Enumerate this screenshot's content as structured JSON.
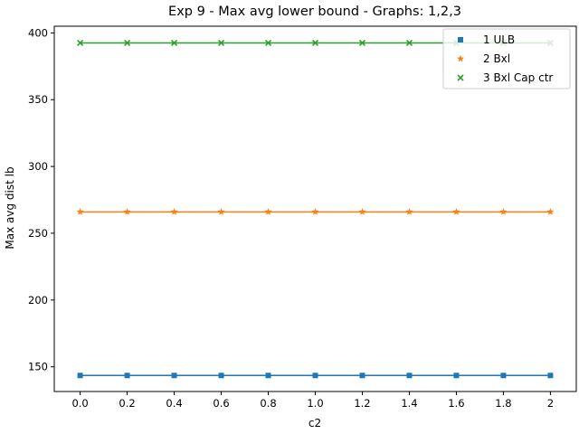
{
  "chart_data": {
    "type": "line",
    "title": "Exp 9 - Max avg lower bound - Graphs: 1,2,3",
    "xlabel": "c2",
    "ylabel": "Max avg dist lb",
    "x": [
      0.0,
      0.2,
      0.4,
      0.6,
      0.8,
      1.0,
      1.2,
      1.4,
      1.6,
      1.8,
      2.0
    ],
    "x_tick_labels": [
      "0.0",
      "0.2",
      "0.4",
      "0.6",
      "0.8",
      "1.0",
      "1.2",
      "1.4",
      "1.6",
      "1.8",
      "2"
    ],
    "y_ticks": [
      150,
      200,
      250,
      300,
      350,
      400
    ],
    "xlim": [
      -0.11,
      2.11
    ],
    "ylim": [
      131.5,
      405
    ],
    "grid": false,
    "legend_position": "top-right",
    "series": [
      {
        "name": "1 ULB",
        "color": "#1f77b4",
        "marker": "square",
        "values": [
          143.5,
          143.5,
          143.5,
          143.5,
          143.5,
          143.5,
          143.5,
          143.5,
          143.5,
          143.5,
          143.5
        ]
      },
      {
        "name": "2 Bxl",
        "color": "#ff7f0e",
        "marker": "star",
        "values": [
          266,
          266,
          266,
          266,
          266,
          266,
          266,
          266,
          266,
          266,
          266
        ]
      },
      {
        "name": "3 Bxl Cap ctr",
        "color": "#2ca02c",
        "marker": "x",
        "values": [
          392.5,
          392.5,
          392.5,
          392.5,
          392.5,
          392.5,
          392.5,
          392.5,
          392.5,
          392.5,
          392.5
        ]
      }
    ]
  }
}
